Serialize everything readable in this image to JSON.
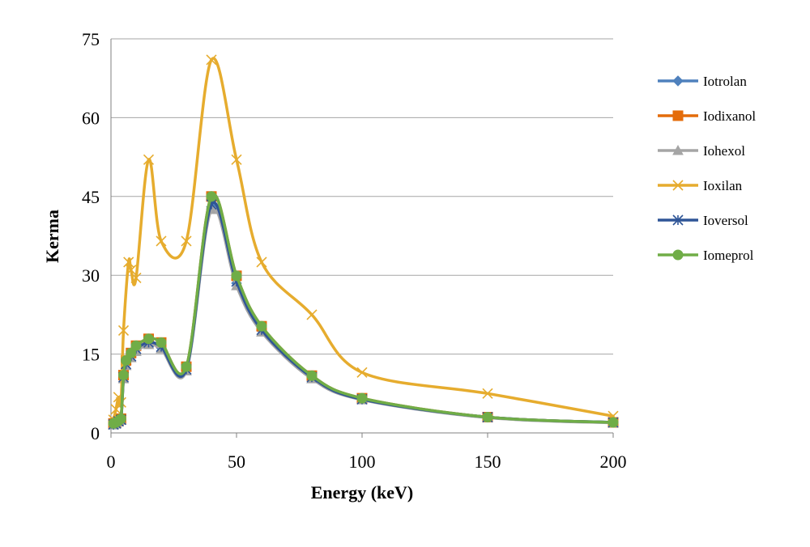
{
  "chart_data": {
    "type": "line",
    "title": "",
    "xlabel": "Energy (keV)",
    "ylabel": "Kerma",
    "xlim": [
      0,
      200
    ],
    "ylim": [
      0,
      75
    ],
    "xticks": [
      0,
      50,
      100,
      150,
      200
    ],
    "yticks": [
      0,
      15,
      30,
      45,
      60,
      75
    ],
    "grid": "horizontal",
    "legend_position": "right",
    "smooth": true,
    "series": [
      {
        "name": "Iotrolan",
        "color": "#4f81bd",
        "marker": "diamond",
        "points": [
          [
            1,
            1.6
          ],
          [
            2,
            1.8
          ],
          [
            3,
            2.2
          ],
          [
            4,
            2.5
          ],
          [
            5,
            10.5
          ],
          [
            6,
            13
          ],
          [
            8,
            14.5
          ],
          [
            10,
            15.8
          ],
          [
            15,
            17
          ],
          [
            20,
            16.2
          ],
          [
            30,
            12
          ],
          [
            40,
            43
          ],
          [
            50,
            28.5
          ],
          [
            60,
            19.5
          ],
          [
            80,
            10.5
          ],
          [
            100,
            6.4
          ],
          [
            150,
            3
          ],
          [
            200,
            2
          ]
        ]
      },
      {
        "name": "Iodixanol",
        "color": "#e46c0a",
        "marker": "square",
        "points": [
          [
            1,
            1.8
          ],
          [
            2,
            2
          ],
          [
            3,
            2.3
          ],
          [
            4,
            2.7
          ],
          [
            5,
            11
          ],
          [
            6,
            13.8
          ],
          [
            8,
            15.2
          ],
          [
            10,
            16.6
          ],
          [
            15,
            17.9
          ],
          [
            20,
            17.2
          ],
          [
            30,
            12.6
          ],
          [
            40,
            45
          ],
          [
            50,
            29.9
          ],
          [
            60,
            20.3
          ],
          [
            80,
            10.9
          ],
          [
            100,
            6.6
          ],
          [
            150,
            3
          ],
          [
            200,
            2
          ]
        ]
      },
      {
        "name": "Iohexol",
        "color": "#a5a5a5",
        "marker": "triangle",
        "points": [
          [
            1,
            1.5
          ],
          [
            2,
            1.7
          ],
          [
            3,
            2.1
          ],
          [
            4,
            2.4
          ],
          [
            5,
            10.3
          ],
          [
            6,
            12.8
          ],
          [
            8,
            14.3
          ],
          [
            10,
            15.5
          ],
          [
            15,
            16.8
          ],
          [
            20,
            16
          ],
          [
            30,
            11.8
          ],
          [
            40,
            42.5
          ],
          [
            50,
            28
          ],
          [
            60,
            19.2
          ],
          [
            80,
            10.3
          ],
          [
            100,
            6.3
          ],
          [
            150,
            2.9
          ],
          [
            200,
            1.9
          ]
        ]
      },
      {
        "name": "Ioxilan",
        "color": "#e6ac2e",
        "marker": "x",
        "points": [
          [
            1,
            2.5
          ],
          [
            2,
            4.5
          ],
          [
            3,
            6.8
          ],
          [
            4,
            5.8
          ],
          [
            5,
            19.5
          ],
          [
            7,
            32.5
          ],
          [
            8,
            31
          ],
          [
            10,
            29.5
          ],
          [
            15,
            52
          ],
          [
            20,
            36.5
          ],
          [
            30,
            36.5
          ],
          [
            40,
            71
          ],
          [
            50,
            52
          ],
          [
            60,
            32.5
          ],
          [
            80,
            22.5
          ],
          [
            100,
            11.5
          ],
          [
            150,
            7.5
          ],
          [
            200,
            3.2
          ]
        ]
      },
      {
        "name": "Ioversol",
        "color": "#2f5597",
        "marker": "star",
        "points": [
          [
            1,
            1.6
          ],
          [
            2,
            1.8
          ],
          [
            3,
            2.2
          ],
          [
            4,
            2.5
          ],
          [
            5,
            10.6
          ],
          [
            6,
            13.1
          ],
          [
            8,
            14.6
          ],
          [
            10,
            16
          ],
          [
            15,
            17.2
          ],
          [
            20,
            16.4
          ],
          [
            30,
            12.1
          ],
          [
            40,
            43.5
          ],
          [
            50,
            28.8
          ],
          [
            60,
            19.6
          ],
          [
            80,
            10.6
          ],
          [
            100,
            6.4
          ],
          [
            150,
            3
          ],
          [
            200,
            2
          ]
        ]
      },
      {
        "name": "Iomeprol",
        "color": "#70ad47",
        "marker": "circle",
        "points": [
          [
            1,
            1.8
          ],
          [
            2,
            2
          ],
          [
            3,
            2.3
          ],
          [
            4,
            2.7
          ],
          [
            5,
            11
          ],
          [
            6,
            13.8
          ],
          [
            8,
            15.2
          ],
          [
            10,
            16.6
          ],
          [
            15,
            17.9
          ],
          [
            20,
            17.2
          ],
          [
            30,
            12.6
          ],
          [
            40,
            45
          ],
          [
            50,
            29.9
          ],
          [
            60,
            20.3
          ],
          [
            80,
            10.9
          ],
          [
            100,
            6.6
          ],
          [
            150,
            3
          ],
          [
            200,
            2
          ]
        ]
      }
    ]
  }
}
